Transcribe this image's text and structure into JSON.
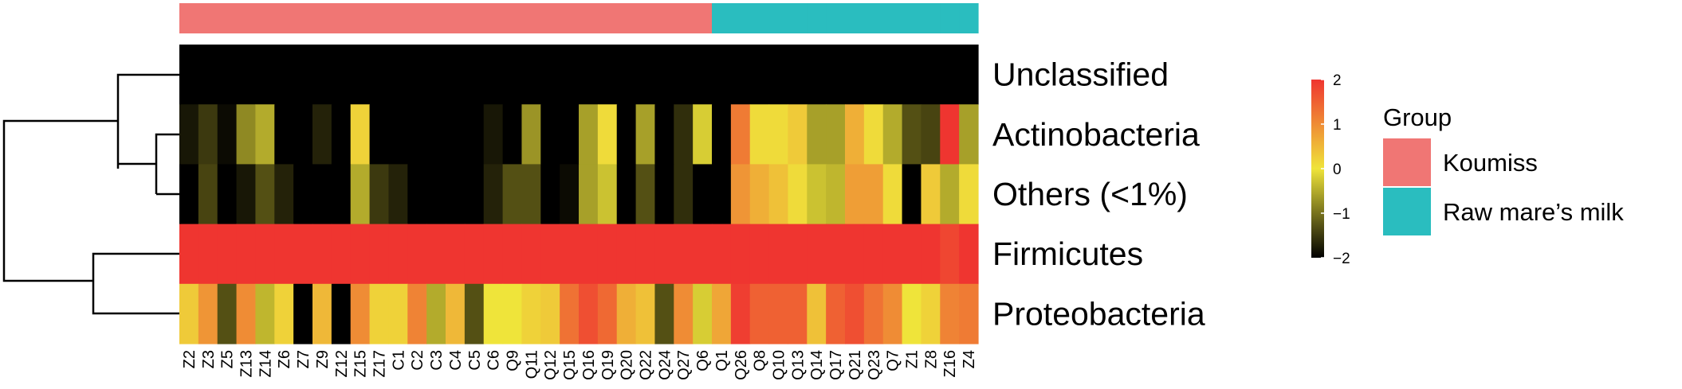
{
  "chart_data": {
    "type": "heatmap",
    "title": "",
    "rows": [
      "Unclassified",
      "Actinobacteria",
      "Others (<1%)",
      "Firmicutes",
      "Proteobacteria"
    ],
    "columns": [
      "Z2",
      "Z3",
      "Z5",
      "Z13",
      "Z14",
      "Z6",
      "Z7",
      "Z9",
      "Z12",
      "Z15",
      "Z17",
      "C1",
      "C2",
      "C3",
      "C4",
      "C5",
      "C6",
      "Q9",
      "Q11",
      "Q12",
      "Q15",
      "Q16",
      "Q19",
      "Q20",
      "Q22",
      "Q24",
      "Q27",
      "Q6",
      "Q1",
      "Q26",
      "Q8",
      "Q10",
      "Q13",
      "Q14",
      "Q17",
      "Q21",
      "Q23",
      "Q7",
      "Z1",
      "Z8",
      "Z16",
      "Z4"
    ],
    "column_groups": [
      "Koumiss",
      "Koumiss",
      "Koumiss",
      "Koumiss",
      "Koumiss",
      "Koumiss",
      "Koumiss",
      "Koumiss",
      "Koumiss",
      "Koumiss",
      "Koumiss",
      "Koumiss",
      "Koumiss",
      "Koumiss",
      "Koumiss",
      "Koumiss",
      "Koumiss",
      "Koumiss",
      "Koumiss",
      "Koumiss",
      "Koumiss",
      "Koumiss",
      "Koumiss",
      "Koumiss",
      "Koumiss",
      "Koumiss",
      "Koumiss",
      "Koumiss",
      "Raw mare's milk",
      "Raw mare's milk",
      "Raw mare's milk",
      "Raw mare's milk",
      "Raw mare's milk",
      "Raw mare's milk",
      "Raw mare's milk",
      "Raw mare's milk",
      "Raw mare's milk",
      "Raw mare's milk",
      "Raw mare's milk",
      "Raw mare's milk",
      "Raw mare's milk",
      "Raw mare's milk"
    ],
    "values": [
      [
        -2,
        -2,
        -2,
        -2,
        -2,
        -2,
        -2,
        -2,
        -2,
        -2,
        -2,
        -2,
        -2,
        -2,
        -2,
        -2,
        -2,
        -2,
        -2,
        -2,
        -2,
        -2,
        -2,
        -2,
        -2,
        -2,
        -2,
        -2,
        -2,
        -2,
        -2,
        -2,
        -2,
        -2,
        -2,
        -2,
        -2,
        -2,
        -2,
        -2,
        -2,
        -2
      ],
      [
        -1.8,
        -1.5,
        -1.9,
        -0.8,
        -0.5,
        -2,
        -2,
        -1.7,
        -2,
        0.2,
        -2,
        -2,
        -2,
        -2,
        -2,
        -2,
        -1.8,
        -2,
        -0.7,
        -2,
        -2,
        -0.6,
        0.1,
        -2,
        -0.6,
        -2,
        -1.6,
        -0.2,
        -2,
        1.2,
        0.1,
        0.1,
        0.3,
        -0.6,
        -0.6,
        0.6,
        0.1,
        -0.5,
        -1.3,
        -1.4,
        2.2,
        -0.6
      ],
      [
        -2,
        -1.4,
        -2,
        -1.8,
        -1.3,
        -1.7,
        -2,
        -2,
        -2,
        -0.5,
        -1.5,
        -1.7,
        -2,
        -2,
        -2,
        -2,
        -1.7,
        -1.3,
        -1.3,
        -2,
        -1.9,
        -0.6,
        -0.3,
        -2,
        -1.3,
        -2,
        -1.6,
        -2,
        -2,
        0.9,
        0.6,
        0.4,
        0.1,
        -0.3,
        -0.4,
        0.8,
        0.8,
        0.1,
        -2,
        0.3,
        -0.5,
        0.1
      ],
      [
        2,
        2,
        2,
        2,
        2,
        2,
        2,
        2,
        2,
        2,
        2,
        2,
        2,
        2,
        2,
        2,
        2,
        2,
        2,
        2,
        2,
        2,
        2,
        2,
        2,
        2,
        2,
        2,
        2,
        2,
        2,
        2,
        2,
        2,
        2,
        2,
        2,
        2,
        2,
        2,
        1.8,
        2
      ],
      [
        0.3,
        0.9,
        -1.3,
        1.0,
        -0.4,
        0.2,
        -2,
        0.5,
        -2,
        1.0,
        0.2,
        0.2,
        1.1,
        -0.5,
        0.5,
        -1.3,
        0.0,
        0.0,
        0.2,
        0.3,
        1.3,
        1.7,
        1.4,
        0.6,
        0.4,
        -1.3,
        1.0,
        -0.2,
        0.7,
        1.9,
        1.5,
        1.5,
        1.5,
        0.4,
        1.5,
        1.7,
        1.3,
        1.0,
        0.0,
        0.2,
        1.1,
        1.2
      ]
    ],
    "color_scale": {
      "min": -2,
      "max": 2,
      "ticks": [
        2,
        1,
        0,
        -1,
        -2
      ],
      "tick_labels": [
        "2",
        "1",
        "0",
        "−1",
        "−2"
      ],
      "colors": [
        "#000000",
        "#efe43a",
        "#ef3530"
      ]
    },
    "legend": {
      "title": "Group",
      "entries": [
        {
          "name": "Koumiss",
          "color": "#f07674"
        },
        {
          "name": "Raw mare’s milk",
          "color": "#2abdbf"
        }
      ]
    },
    "row_dendrogram": true,
    "grid": false
  }
}
